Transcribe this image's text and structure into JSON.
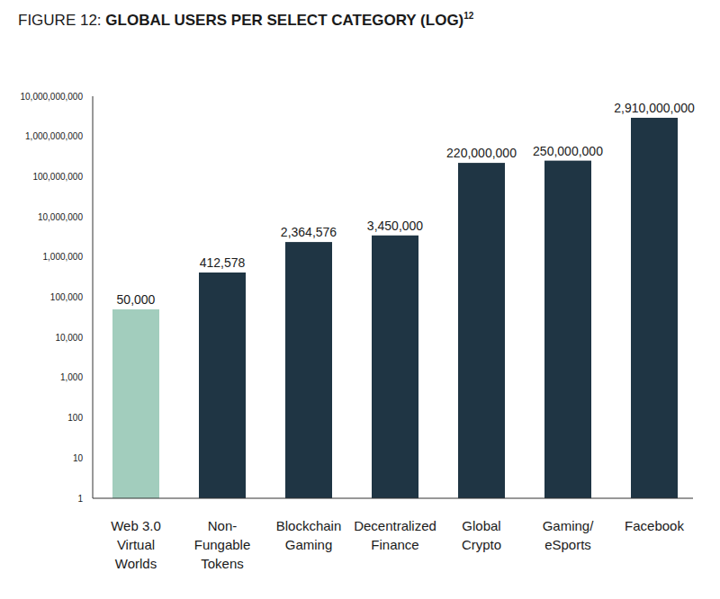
{
  "chart_data": {
    "type": "bar",
    "title": "FIGURE 12: GLOBAL USERS PER SELECT CATEGORY (LOG)",
    "annotations": [
      "12"
    ],
    "categories": [
      "Web 3.0\nVirtual\nWorlds",
      "Non-\nFungable\nTokens",
      "Blockchain\nGaming",
      "Decentralized\nFinance",
      "Global\nCrypto",
      "Gaming/\neSports",
      "Facebook"
    ],
    "values": [
      50000,
      412578,
      2364576,
      3450000,
      220000000,
      250000000,
      2910000000
    ],
    "value_labels": [
      "50,000",
      "412,578",
      "2,364,576",
      "3,450,000",
      "220,000,000",
      "250,000,000",
      "2,910,000,000"
    ],
    "colors": [
      "#a2cdbd",
      "#1f3544",
      "#1f3544",
      "#1f3544",
      "#1f3544",
      "#1f3544",
      "#1f3544"
    ],
    "log": "y",
    "grid": false,
    "data_labels": true,
    "ylim": [
      1,
      10000000000
    ],
    "yticks": [
      1,
      10,
      100,
      {
        "value": 1000,
        "label": "1,000"
      },
      {
        "value": 10000,
        "label": "10,000"
      },
      {
        "value": 100000,
        "label": "100,000"
      },
      {
        "value": 1000000,
        "label": "1,000,000"
      },
      {
        "value": 10000000,
        "label": "10,000,000"
      },
      {
        "value": 100000000,
        "label": "100,000,000"
      },
      {
        "value": 1000000000,
        "label": "1,000,000,000"
      },
      {
        "value": 10000000000,
        "label": "10,000,000,000"
      }
    ]
  }
}
